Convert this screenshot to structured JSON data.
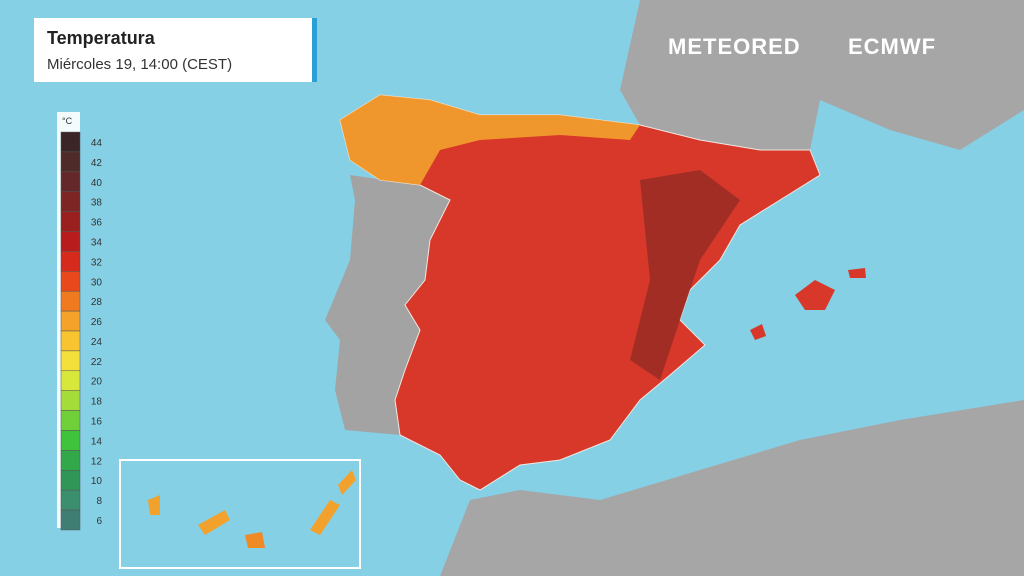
{
  "header": {
    "title": "Temperatura",
    "subtitle": "Miércoles 19, 14:00 (CEST)"
  },
  "logos": {
    "left": "METEORED",
    "right": "ECMWF"
  },
  "legend": {
    "unit": "°C",
    "ticks": [
      44,
      42,
      40,
      38,
      36,
      34,
      32,
      30,
      28,
      26,
      24,
      22,
      20,
      18,
      16,
      14,
      12,
      10,
      8,
      6
    ],
    "colors": [
      "#3b2526",
      "#4e2a28",
      "#65282a",
      "#7d2424",
      "#9a1f1f",
      "#b81c1c",
      "#d52a1c",
      "#e8481c",
      "#f07a20",
      "#f5a22a",
      "#f8c530",
      "#f4e03a",
      "#d7e83a",
      "#a4dc3a",
      "#6fd03a",
      "#3fc23c",
      "#33a84a",
      "#2f9657",
      "#3b8f6e",
      "#3f7e73"
    ]
  }
}
